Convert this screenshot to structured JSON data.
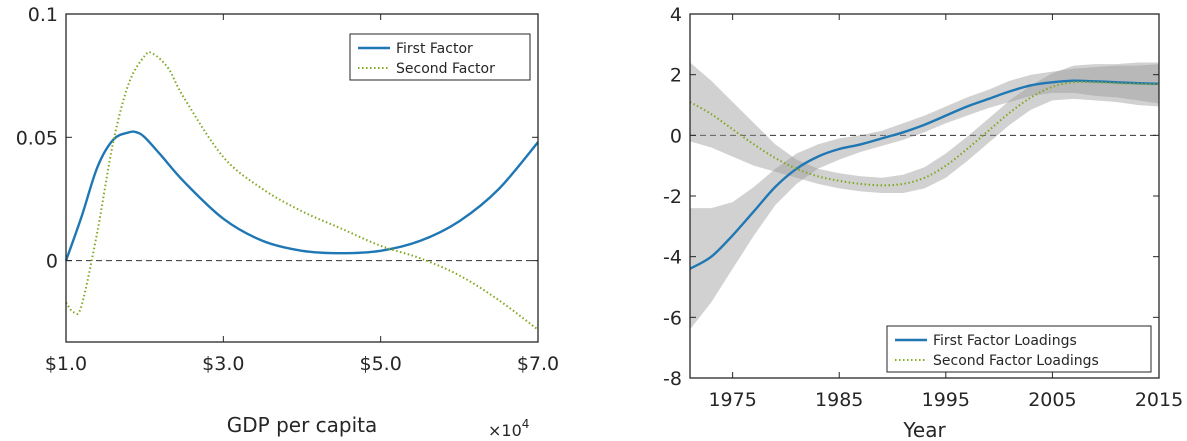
{
  "chart_data": [
    {
      "type": "line",
      "xlabel": "GDP per capita",
      "x_exponent_label": "×10^4",
      "xlim": [
        1.0,
        7.0
      ],
      "ylim": [
        -0.033,
        0.1
      ],
      "xticks": [
        1.0,
        3.0,
        5.0,
        7.0
      ],
      "xtick_labels": [
        "$1.0",
        "$3.0",
        "$5.0",
        "$7.0"
      ],
      "yticks": [
        0,
        0.05,
        0.1
      ],
      "ytick_labels": [
        "0",
        "0.05",
        "0.1"
      ],
      "zero_line": true,
      "legend_position": "top-right",
      "series": [
        {
          "name": "First Factor",
          "color": "#1f77b4",
          "style": "solid",
          "x": [
            1.0,
            1.2,
            1.4,
            1.6,
            1.8,
            1.9,
            2.0,
            2.2,
            2.5,
            3.0,
            3.5,
            4.0,
            4.5,
            5.0,
            5.5,
            6.0,
            6.5,
            7.0
          ],
          "y": [
            0.0,
            0.018,
            0.038,
            0.049,
            0.052,
            0.052,
            0.05,
            0.043,
            0.032,
            0.017,
            0.008,
            0.004,
            0.003,
            0.004,
            0.008,
            0.016,
            0.029,
            0.048
          ]
        },
        {
          "name": "Second Factor",
          "color": "#7fa81f",
          "style": "dotted",
          "x": [
            1.0,
            1.1,
            1.2,
            1.4,
            1.6,
            1.8,
            2.0,
            2.1,
            2.3,
            2.5,
            3.0,
            3.5,
            4.0,
            4.5,
            5.0,
            5.5,
            6.0,
            6.5,
            7.0
          ],
          "y": [
            -0.017,
            -0.021,
            -0.018,
            0.012,
            0.048,
            0.072,
            0.083,
            0.084,
            0.078,
            0.066,
            0.042,
            0.029,
            0.02,
            0.013,
            0.006,
            0.001,
            -0.006,
            -0.016,
            -0.028
          ]
        }
      ]
    },
    {
      "type": "line",
      "xlabel": "Year",
      "xlim": [
        1971,
        2015
      ],
      "ylim": [
        -8,
        4
      ],
      "xticks": [
        1975,
        1985,
        1995,
        2005,
        2015
      ],
      "xtick_labels": [
        "1975",
        "1985",
        "1995",
        "2005",
        "2015"
      ],
      "yticks": [
        -8,
        -6,
        -4,
        -2,
        0,
        2,
        4
      ],
      "ytick_labels": [
        "-8",
        "-6",
        "-4",
        "-2",
        "0",
        "2",
        "4"
      ],
      "zero_line": true,
      "legend_position": "bottom-right",
      "series": [
        {
          "name": "First Factor Loadings",
          "color": "#1f77b4",
          "style": "solid",
          "x": [
            1971,
            1973,
            1975,
            1977,
            1979,
            1981,
            1983,
            1985,
            1987,
            1989,
            1991,
            1993,
            1995,
            1997,
            1999,
            2001,
            2003,
            2005,
            2007,
            2009,
            2011,
            2013,
            2015
          ],
          "y": [
            -4.4,
            -4.0,
            -3.3,
            -2.5,
            -1.7,
            -1.1,
            -0.7,
            -0.45,
            -0.3,
            -0.1,
            0.1,
            0.35,
            0.65,
            0.95,
            1.2,
            1.45,
            1.65,
            1.75,
            1.8,
            1.78,
            1.75,
            1.72,
            1.7
          ],
          "band_lower": [
            -6.4,
            -5.5,
            -4.4,
            -3.3,
            -2.3,
            -1.6,
            -1.1,
            -0.8,
            -0.55,
            -0.35,
            -0.15,
            0.1,
            0.4,
            0.65,
            0.9,
            1.1,
            1.3,
            1.4,
            1.4,
            1.3,
            1.25,
            1.15,
            1.05
          ],
          "band_upper": [
            -2.4,
            -2.4,
            -2.2,
            -1.7,
            -1.1,
            -0.6,
            -0.3,
            -0.1,
            0.0,
            0.15,
            0.4,
            0.65,
            0.95,
            1.25,
            1.5,
            1.8,
            2.0,
            2.1,
            2.2,
            2.25,
            2.3,
            2.3,
            2.35
          ]
        },
        {
          "name": "Second Factor Loadings",
          "color": "#7fa81f",
          "style": "dotted",
          "x": [
            1971,
            1973,
            1975,
            1977,
            1979,
            1981,
            1983,
            1985,
            1987,
            1989,
            1991,
            1993,
            1995,
            1997,
            1999,
            2001,
            2003,
            2005,
            2007,
            2009,
            2011,
            2013,
            2015
          ],
          "y": [
            1.1,
            0.7,
            0.2,
            -0.3,
            -0.75,
            -1.1,
            -1.35,
            -1.5,
            -1.6,
            -1.65,
            -1.6,
            -1.4,
            -1.0,
            -0.45,
            0.15,
            0.75,
            1.25,
            1.6,
            1.75,
            1.75,
            1.72,
            1.7,
            1.68
          ],
          "band_lower": [
            -0.2,
            -0.4,
            -0.7,
            -1.0,
            -1.2,
            -1.4,
            -1.6,
            -1.75,
            -1.85,
            -1.9,
            -1.9,
            -1.75,
            -1.4,
            -0.85,
            -0.25,
            0.35,
            0.85,
            1.15,
            1.2,
            1.15,
            1.1,
            1.0,
            0.95
          ],
          "band_upper": [
            2.4,
            1.8,
            1.1,
            0.4,
            -0.3,
            -0.8,
            -1.1,
            -1.25,
            -1.35,
            -1.4,
            -1.3,
            -1.05,
            -0.6,
            -0.05,
            0.55,
            1.15,
            1.65,
            2.05,
            2.3,
            2.35,
            2.35,
            2.4,
            2.4
          ]
        }
      ]
    }
  ]
}
